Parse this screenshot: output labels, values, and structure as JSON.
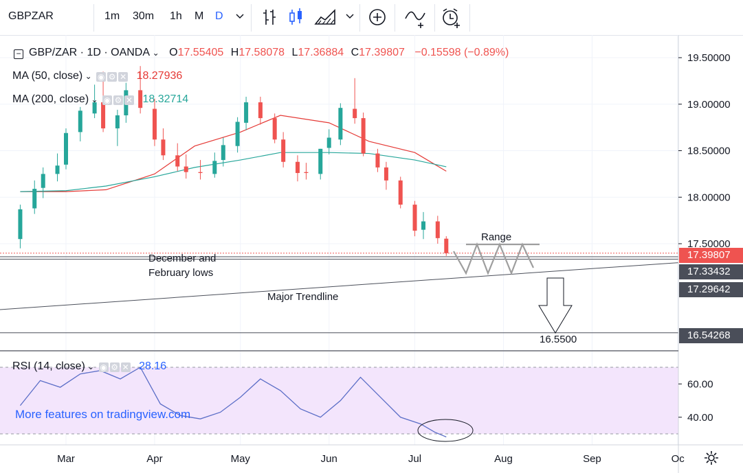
{
  "toolbar": {
    "symbol": "GBPZAR",
    "intervals": [
      "1m",
      "30m",
      "1h",
      "M",
      "D"
    ],
    "active_interval": "D"
  },
  "legend": {
    "title": "GBP/ZAR · 1D · OANDA",
    "o_label": "O",
    "o": "17.55405",
    "h_label": "H",
    "h": "17.58078",
    "l_label": "L",
    "l": "17.36884",
    "c_label": "C",
    "c": "17.39807",
    "change": "−0.15598 (−0.89%)",
    "ma50_label": "MA (50, close)",
    "ma50_value": "18.27936",
    "ma200_label": "MA (200, close)",
    "ma200_value": "18.32714",
    "rsi_label": "RSI (14, close)",
    "rsi_value": "28.16"
  },
  "colors": {
    "up": "#26a69a",
    "down": "#ef5350",
    "ma50": "#e53935",
    "ma200": "#26a69a",
    "rsi_line": "#5b6ec7",
    "rsi_band": "#f3e5fc",
    "accent": "#2962ff"
  },
  "price_tags": [
    {
      "value": "17.39807",
      "color": "#ef5350"
    },
    {
      "value": "17.33432",
      "color": "#4a4e59"
    },
    {
      "value": "17.29642",
      "color": "#4a4e59"
    },
    {
      "value": "16.54268",
      "color": "#4a4e59"
    }
  ],
  "annotations": {
    "range": "Range",
    "lows_line1": "December and",
    "lows_line2": "February lows",
    "trendline": "Major Trendline",
    "target": "16.5500"
  },
  "watermark": "More features on tradingview.com",
  "chart_data": [
    {
      "type": "candlestick",
      "title": "GBP/ZAR · 1D · OANDA",
      "x_ticks": [
        "Mar",
        "Apr",
        "May",
        "Jun",
        "Jul",
        "Aug",
        "Sep",
        "Oc"
      ],
      "y_ticks": [
        "17.50000",
        "18.00000",
        "18.50000",
        "19.00000",
        "19.50000"
      ],
      "ylim": [
        16.45,
        19.7
      ],
      "grid": true,
      "series": [
        {
          "name": "MA (50, close)",
          "last": 18.27936,
          "x": [
            "Feb 13",
            "Mar 1",
            "Mar 15",
            "Apr 1",
            "Apr 15",
            "May 1",
            "May 15",
            "Jun 1",
            "Jun 15",
            "Jul 1",
            "Jul 12"
          ],
          "values": [
            18.06,
            18.06,
            18.08,
            18.25,
            18.55,
            18.7,
            18.88,
            18.8,
            18.6,
            18.48,
            18.27936
          ]
        },
        {
          "name": "MA (200, close)",
          "last": 18.32714,
          "x": [
            "Feb 13",
            "Mar 1",
            "Mar 15",
            "Apr 1",
            "Apr 15",
            "May 1",
            "May 15",
            "Jun 1",
            "Jun 15",
            "Jul 1",
            "Jul 12"
          ],
          "values": [
            18.06,
            18.07,
            18.12,
            18.22,
            18.32,
            18.4,
            18.48,
            18.48,
            18.47,
            18.4,
            18.32714
          ]
        }
      ],
      "candles": {
        "x": [
          "Feb 13",
          "Feb 18",
          "Feb 21",
          "Feb 26",
          "Mar 1",
          "Mar 6",
          "Mar 11",
          "Mar 14",
          "Mar 19",
          "Mar 22",
          "Mar 27",
          "Apr 1",
          "Apr 4",
          "Apr 9",
          "Apr 12",
          "Apr 17",
          "Apr 22",
          "Apr 25",
          "Apr 30",
          "May 3",
          "May 8",
          "May 13",
          "May 16",
          "May 21",
          "May 24",
          "May 29",
          "Jun 1",
          "Jun 5",
          "Jun 10",
          "Jun 13",
          "Jun 18",
          "Jun 21",
          "Jun 26",
          "Jul 1",
          "Jul 4",
          "Jul 9",
          "Jul 12"
        ],
        "open": [
          17.55,
          17.88,
          18.1,
          18.25,
          18.35,
          18.7,
          18.9,
          19.02,
          18.74,
          18.88,
          19.15,
          18.95,
          18.62,
          18.45,
          18.33,
          18.27,
          18.25,
          18.4,
          18.55,
          18.8,
          19.02,
          18.85,
          18.62,
          18.38,
          18.27,
          18.25,
          18.53,
          18.62,
          18.95,
          18.85,
          18.47,
          18.32,
          18.18,
          17.92,
          17.65,
          17.74,
          17.55405
        ],
        "high": [
          17.92,
          18.18,
          18.32,
          18.47,
          18.74,
          18.97,
          19.21,
          19.35,
          18.94,
          19.23,
          19.41,
          19.06,
          18.74,
          18.58,
          18.46,
          18.4,
          18.48,
          18.64,
          18.86,
          19.08,
          19.08,
          18.9,
          18.7,
          18.45,
          18.37,
          18.52,
          18.73,
          19.01,
          19.28,
          18.91,
          18.52,
          18.38,
          18.22,
          17.96,
          17.84,
          17.8,
          17.58078
        ],
        "low": [
          17.45,
          17.82,
          17.99,
          18.17,
          18.3,
          18.6,
          18.85,
          18.7,
          18.55,
          18.8,
          18.9,
          18.55,
          18.4,
          18.28,
          18.2,
          18.19,
          18.21,
          18.33,
          18.48,
          18.72,
          18.78,
          18.58,
          18.32,
          18.17,
          18.19,
          18.19,
          18.46,
          18.56,
          18.79,
          18.44,
          18.27,
          18.08,
          17.88,
          17.58,
          17.55,
          17.5,
          17.36884
        ],
        "close": [
          17.87,
          18.09,
          18.25,
          18.34,
          18.69,
          18.93,
          19.02,
          18.74,
          18.88,
          19.15,
          18.96,
          18.62,
          18.45,
          18.33,
          18.27,
          18.26,
          18.39,
          18.56,
          18.81,
          19.02,
          18.85,
          18.62,
          18.38,
          18.26,
          18.26,
          18.52,
          18.64,
          18.96,
          18.85,
          18.47,
          18.32,
          18.18,
          17.92,
          17.64,
          17.74,
          17.56,
          17.39807
        ]
      }
    },
    {
      "type": "line",
      "title": "RSI (14, close)",
      "y_ticks": [
        "40.00",
        "60.00"
      ],
      "ylim": [
        20,
        73
      ],
      "band": [
        30,
        70
      ],
      "grid": true,
      "series": [
        {
          "name": "RSI (14, close)",
          "last": 28.16,
          "x": [
            "Feb 13",
            "Feb 20",
            "Feb 27",
            "Mar 6",
            "Mar 13",
            "Mar 20",
            "Mar 27",
            "Apr 3",
            "Apr 10",
            "Apr 17",
            "Apr 24",
            "May 1",
            "May 8",
            "May 15",
            "May 22",
            "May 29",
            "Jun 5",
            "Jun 12",
            "Jun 19",
            "Jun 26",
            "Jul 3",
            "Jul 8",
            "Jul 12"
          ],
          "values": [
            47,
            62,
            58,
            66,
            68,
            63,
            70,
            48,
            41,
            39,
            43,
            52,
            63,
            56,
            45,
            40,
            50,
            64,
            52,
            40,
            36,
            31,
            28.16
          ]
        }
      ]
    }
  ]
}
